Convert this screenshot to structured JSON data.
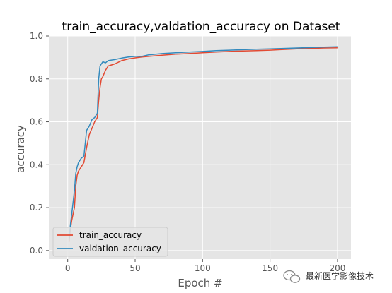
{
  "chart_data": {
    "type": "line",
    "title": "train_accuracy,valdation_accuracy on Dataset",
    "xlabel": "Epoch #",
    "ylabel": "accuracy",
    "xlim": [
      -14,
      210
    ],
    "ylim": [
      -0.04,
      1.0
    ],
    "xticks": [
      0,
      50,
      100,
      150,
      200
    ],
    "yticks": [
      0.0,
      0.2,
      0.4,
      0.6,
      0.8,
      1.0
    ],
    "grid": true,
    "legend_position": "bottom-left",
    "colors": {
      "plot_background": "#e5e5e5",
      "grid": "#ffffff",
      "tick": "#555555"
    },
    "series": [
      {
        "name": "train_accuracy",
        "color": "#e24a33",
        "x": [
          1,
          2,
          3,
          5,
          6,
          7,
          8,
          10,
          12,
          14,
          16,
          18,
          20,
          22,
          23,
          24,
          25,
          26,
          28,
          30,
          35,
          40,
          45,
          50,
          55,
          60,
          70,
          80,
          90,
          100,
          110,
          120,
          130,
          140,
          150,
          160,
          170,
          180,
          190,
          200
        ],
        "y": [
          0.04,
          0.1,
          0.14,
          0.2,
          0.3,
          0.35,
          0.37,
          0.39,
          0.41,
          0.48,
          0.54,
          0.57,
          0.6,
          0.62,
          0.7,
          0.76,
          0.8,
          0.81,
          0.84,
          0.86,
          0.87,
          0.885,
          0.893,
          0.898,
          0.902,
          0.905,
          0.91,
          0.915,
          0.918,
          0.922,
          0.925,
          0.928,
          0.93,
          0.932,
          0.934,
          0.937,
          0.94,
          0.942,
          0.944,
          0.945
        ]
      },
      {
        "name": "valdation_accuracy",
        "color": "#348abd",
        "x": [
          1,
          2,
          3,
          5,
          6,
          7,
          8,
          10,
          12,
          13,
          14,
          16,
          18,
          20,
          22,
          23,
          24,
          25,
          26,
          28,
          30,
          35,
          40,
          45,
          50,
          55,
          60,
          70,
          80,
          90,
          100,
          110,
          120,
          130,
          140,
          150,
          160,
          170,
          180,
          190,
          200
        ],
        "y": [
          0.05,
          0.12,
          0.17,
          0.28,
          0.36,
          0.39,
          0.41,
          0.43,
          0.44,
          0.5,
          0.56,
          0.58,
          0.61,
          0.62,
          0.64,
          0.8,
          0.86,
          0.87,
          0.88,
          0.875,
          0.885,
          0.89,
          0.897,
          0.902,
          0.905,
          0.905,
          0.912,
          0.918,
          0.922,
          0.925,
          0.928,
          0.932,
          0.934,
          0.936,
          0.938,
          0.94,
          0.942,
          0.944,
          0.946,
          0.948,
          0.95
        ]
      }
    ]
  },
  "watermark": {
    "text": "最新医学影像技术",
    "icon": "wechat-logo-icon"
  }
}
